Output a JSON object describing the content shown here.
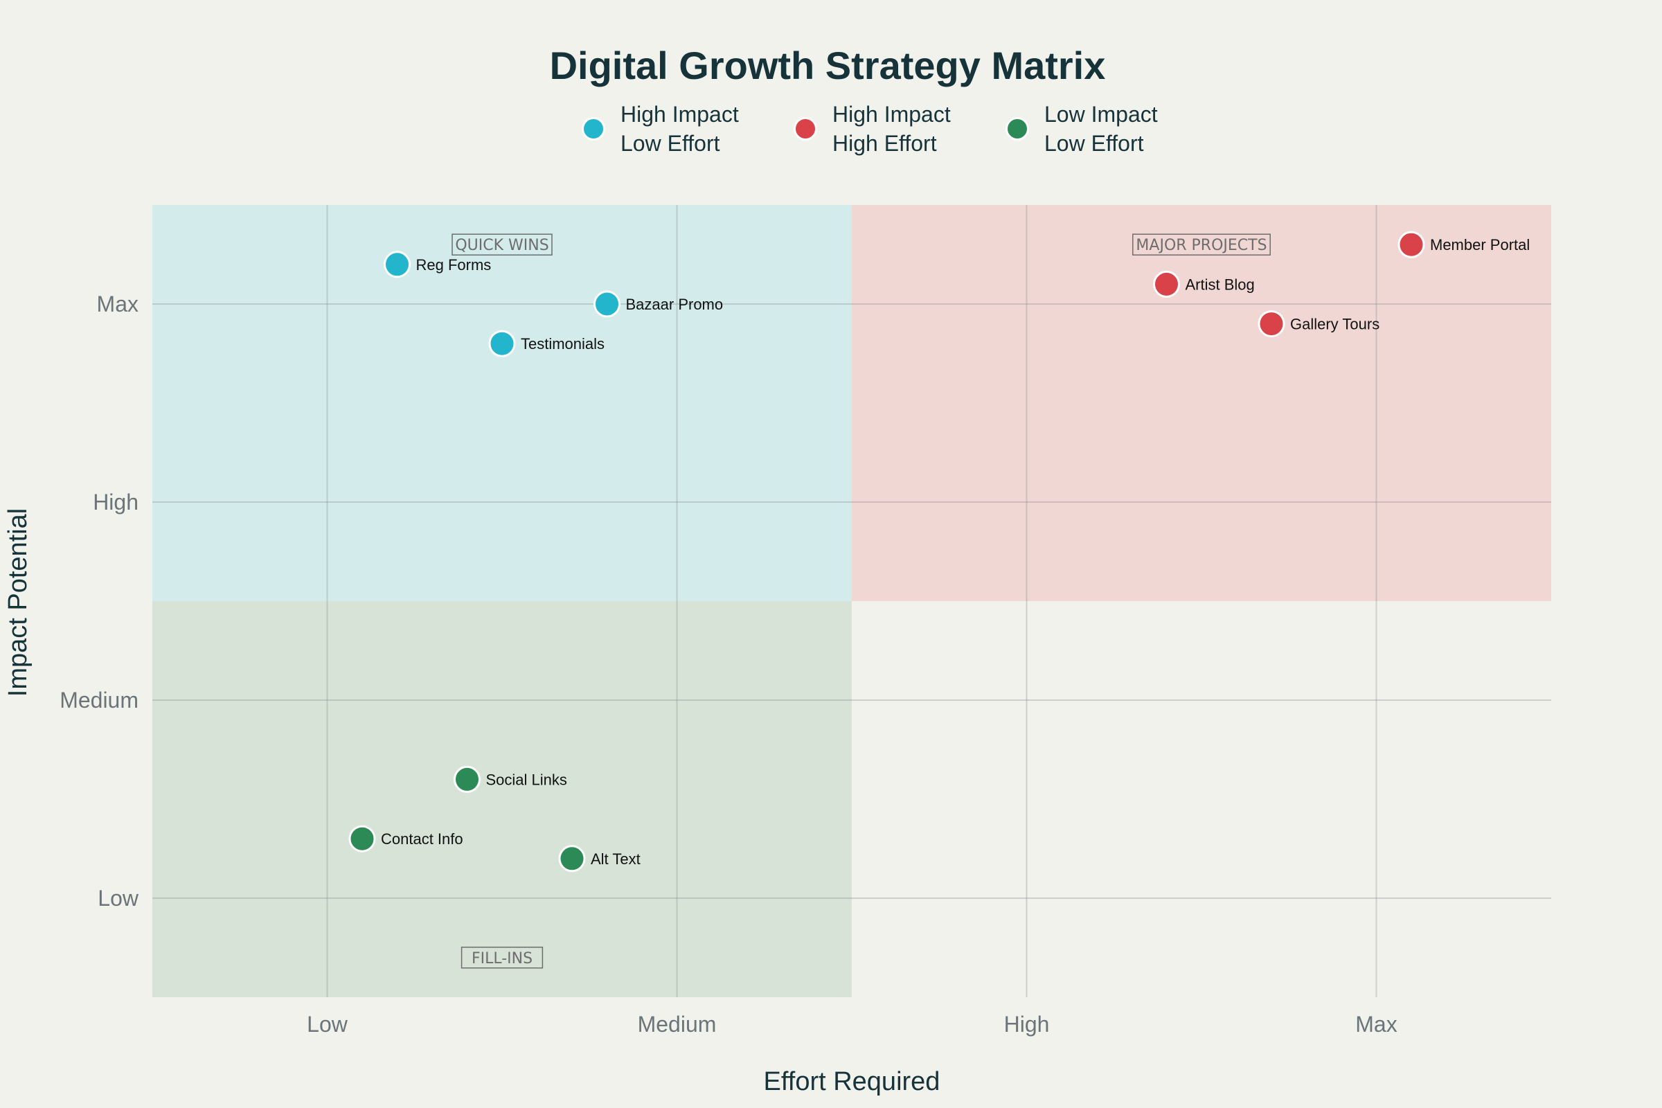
{
  "title": "Digital Growth Strategy Matrix",
  "legend": [
    {
      "line1": "High Impact",
      "line2": "Low Effort",
      "color": "#22b5cc"
    },
    {
      "line1": "High Impact",
      "line2": "High Effort",
      "color": "#d94249"
    },
    {
      "line1": "Low Impact",
      "line2": "Low Effort",
      "color": "#2b8a55"
    }
  ],
  "chart_data": {
    "type": "scatter",
    "title": "Digital Growth Strategy Matrix",
    "xlabel": "Effort Required",
    "ylabel": "Impact Potential",
    "xlim": [
      0.5,
      4.5
    ],
    "ylim": [
      0.5,
      4.5
    ],
    "x_ticks": [
      {
        "value": 1,
        "label": "Low"
      },
      {
        "value": 2,
        "label": "Medium"
      },
      {
        "value": 3,
        "label": "High"
      },
      {
        "value": 4,
        "label": "Max"
      }
    ],
    "y_ticks": [
      {
        "value": 1,
        "label": "Low"
      },
      {
        "value": 2,
        "label": "Medium"
      },
      {
        "value": 3,
        "label": "High"
      },
      {
        "value": 4,
        "label": "Max"
      }
    ],
    "grid": true,
    "legend_position": "top-center",
    "quadrants": [
      {
        "label": "QUICK WINS",
        "x_range": [
          0.5,
          2.5
        ],
        "y_range": [
          2.5,
          4.5
        ],
        "color": "#d3ebea",
        "label_at": [
          1.5,
          4.3
        ]
      },
      {
        "label": "MAJOR PROJECTS",
        "x_range": [
          2.5,
          4.5
        ],
        "y_range": [
          2.5,
          4.5
        ],
        "color": "#f0d7d4",
        "label_at": [
          3.5,
          4.3
        ]
      },
      {
        "label": "FILL-INS",
        "x_range": [
          0.5,
          2.5
        ],
        "y_range": [
          0.5,
          2.5
        ],
        "color": "#d7e3d7",
        "label_at": [
          1.5,
          0.7
        ]
      }
    ],
    "series": [
      {
        "name": "High Impact\nLow Effort",
        "color": "#22b5cc",
        "points": [
          {
            "label": "Reg Forms",
            "x": 1.2,
            "y": 4.2
          },
          {
            "label": "Bazaar Promo",
            "x": 1.8,
            "y": 4.0
          },
          {
            "label": "Testimonials",
            "x": 1.5,
            "y": 3.8
          }
        ]
      },
      {
        "name": "High Impact\nHigh Effort",
        "color": "#d94249",
        "points": [
          {
            "label": "Member Portal",
            "x": 4.1,
            "y": 4.3
          },
          {
            "label": "Artist Blog",
            "x": 3.4,
            "y": 4.1
          },
          {
            "label": "Gallery Tours",
            "x": 3.7,
            "y": 3.9
          }
        ]
      },
      {
        "name": "Low Impact\nLow Effort",
        "color": "#2b8a55",
        "points": [
          {
            "label": "Social Links",
            "x": 1.4,
            "y": 1.6
          },
          {
            "label": "Contact Info",
            "x": 1.1,
            "y": 1.3
          },
          {
            "label": "Alt Text",
            "x": 1.7,
            "y": 1.2
          }
        ]
      }
    ]
  }
}
